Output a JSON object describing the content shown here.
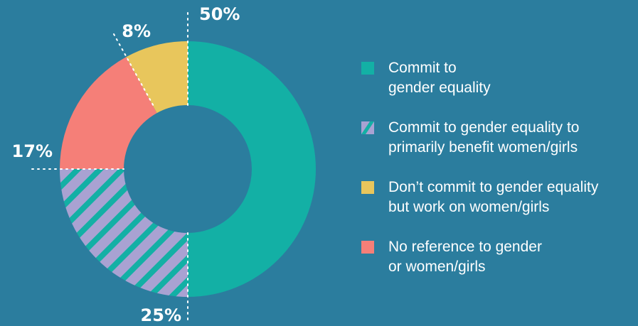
{
  "chart_data": {
    "type": "pie",
    "style": "donut",
    "categories": [
      "Commit to\ngender equality",
      "Commit to gender equality to\nprimarily benefit women/girls",
      "Don’t commit to gender equality\nbut work on women/girls",
      "No reference to gender\nor women/girls"
    ],
    "values": [
      50,
      25,
      8,
      17
    ],
    "value_labels": [
      "50%",
      "25%",
      "8%",
      "17%"
    ],
    "colors": [
      "#13b0a5",
      "#a9a2d2",
      "#e8c65c",
      "#f57f78"
    ],
    "hatch": [
      false,
      true,
      false,
      false
    ],
    "hatch_color": "#13b0a5",
    "slice_order_clockwise_from_top": [
      0,
      1,
      3,
      2
    ],
    "legend_position": "right"
  }
}
